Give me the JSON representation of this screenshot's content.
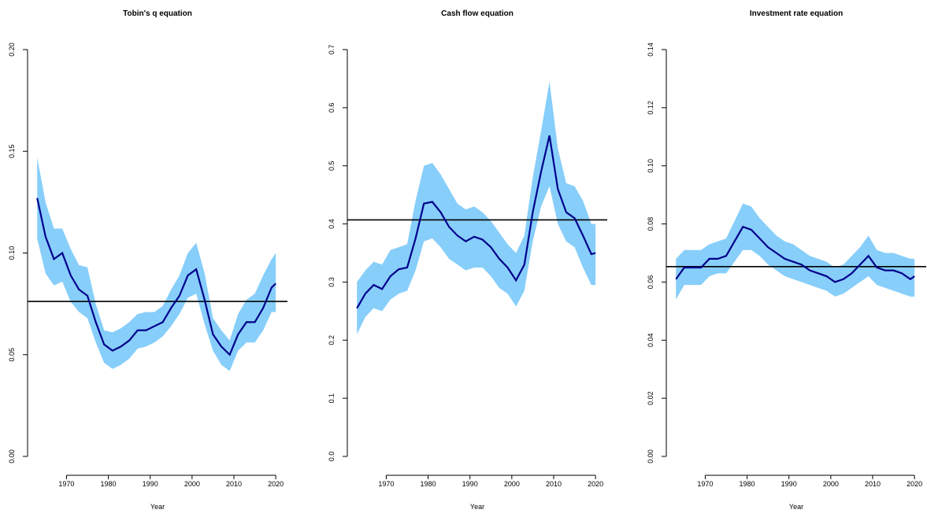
{
  "chart_data": [
    {
      "type": "line",
      "title": "Tobin's q equation",
      "xlabel": "Year",
      "x": [
        1963,
        1965,
        1967,
        1969,
        1971,
        1973,
        1975,
        1977,
        1979,
        1981,
        1983,
        1985,
        1987,
        1989,
        1991,
        1993,
        1995,
        1997,
        1999,
        2001,
        2003,
        2005,
        2007,
        2009,
        2011,
        2013,
        2015,
        2017,
        2019,
        2020
      ],
      "values": [
        0.127,
        0.108,
        0.097,
        0.1,
        0.089,
        0.082,
        0.079,
        0.066,
        0.055,
        0.052,
        0.054,
        0.057,
        0.062,
        0.062,
        0.064,
        0.066,
        0.073,
        0.079,
        0.089,
        0.092,
        0.077,
        0.06,
        0.054,
        0.05,
        0.06,
        0.066,
        0.066,
        0.073,
        0.083,
        0.085
      ],
      "upper": [
        0.147,
        0.125,
        0.112,
        0.112,
        0.102,
        0.094,
        0.093,
        0.075,
        0.062,
        0.061,
        0.063,
        0.066,
        0.07,
        0.071,
        0.071,
        0.074,
        0.082,
        0.089,
        0.1,
        0.105,
        0.09,
        0.068,
        0.062,
        0.057,
        0.07,
        0.077,
        0.08,
        0.089,
        0.097,
        0.1
      ],
      "lower": [
        0.107,
        0.09,
        0.084,
        0.086,
        0.076,
        0.071,
        0.068,
        0.056,
        0.046,
        0.043,
        0.045,
        0.048,
        0.053,
        0.054,
        0.056,
        0.059,
        0.064,
        0.07,
        0.078,
        0.08,
        0.065,
        0.052,
        0.045,
        0.042,
        0.052,
        0.056,
        0.056,
        0.062,
        0.071,
        0.071
      ],
      "color": "#00008b",
      "band_color": "#87cefa",
      "hline": 0.0762,
      "xlim": [
        1960.7,
        2022.8
      ],
      "xticks": [
        1970,
        1980,
        1990,
        2000,
        2010,
        2020
      ],
      "ylim": [
        0,
        0.2
      ],
      "yticks": [
        {
          "value": 0,
          "label": "0.00"
        },
        {
          "value": 0.05,
          "label": "0.05"
        },
        {
          "value": 0.1,
          "label": "0.10"
        },
        {
          "value": 0.15,
          "label": "0.15"
        },
        {
          "value": 0.2,
          "label": "0.20"
        }
      ]
    },
    {
      "type": "line",
      "title": "Cash flow equation",
      "xlabel": "Year",
      "x": [
        1963,
        1965,
        1967,
        1969,
        1971,
        1973,
        1975,
        1977,
        1979,
        1981,
        1983,
        1985,
        1987,
        1989,
        1991,
        1993,
        1995,
        1997,
        1999,
        2001,
        2003,
        2005,
        2007,
        2009,
        2011,
        2013,
        2015,
        2017,
        2019,
        2020
      ],
      "values": [
        0.255,
        0.28,
        0.295,
        0.288,
        0.31,
        0.322,
        0.325,
        0.375,
        0.435,
        0.438,
        0.42,
        0.395,
        0.38,
        0.37,
        0.378,
        0.373,
        0.36,
        0.34,
        0.325,
        0.303,
        0.33,
        0.42,
        0.49,
        0.552,
        0.46,
        0.42,
        0.41,
        0.38,
        0.348,
        0.35
      ],
      "upper": [
        0.3,
        0.32,
        0.335,
        0.33,
        0.355,
        0.36,
        0.365,
        0.44,
        0.5,
        0.505,
        0.485,
        0.46,
        0.435,
        0.425,
        0.43,
        0.42,
        0.405,
        0.385,
        0.365,
        0.35,
        0.38,
        0.48,
        0.56,
        0.645,
        0.53,
        0.47,
        0.465,
        0.44,
        0.4,
        0.4
      ],
      "lower": [
        0.21,
        0.24,
        0.255,
        0.25,
        0.27,
        0.28,
        0.285,
        0.32,
        0.37,
        0.375,
        0.36,
        0.34,
        0.33,
        0.32,
        0.325,
        0.325,
        0.31,
        0.29,
        0.28,
        0.258,
        0.285,
        0.37,
        0.43,
        0.465,
        0.4,
        0.37,
        0.36,
        0.325,
        0.295,
        0.295
      ],
      "color": "#00008b",
      "band_color": "#87cefa",
      "hline": 0.407,
      "xlim": [
        1960.7,
        2022.8
      ],
      "xticks": [
        1970,
        1980,
        1990,
        2000,
        2010,
        2020
      ],
      "ylim": [
        0,
        0.7
      ],
      "yticks": [
        {
          "value": 0,
          "label": "0.0"
        },
        0.1,
        0.2,
        0.3,
        0.4,
        0.5,
        0.6,
        0.7
      ]
    },
    {
      "type": "line",
      "title": "Investment rate equation",
      "xlabel": "Year",
      "x": [
        1963,
        1965,
        1967,
        1969,
        1971,
        1973,
        1975,
        1977,
        1979,
        1981,
        1983,
        1985,
        1987,
        1989,
        1991,
        1993,
        1995,
        1997,
        1999,
        2001,
        2003,
        2005,
        2007,
        2009,
        2011,
        2013,
        2015,
        2017,
        2019,
        2020
      ],
      "values": [
        0.061,
        0.065,
        0.065,
        0.065,
        0.068,
        0.068,
        0.069,
        0.074,
        0.079,
        0.078,
        0.075,
        0.072,
        0.07,
        0.068,
        0.067,
        0.066,
        0.064,
        0.063,
        0.062,
        0.06,
        0.061,
        0.063,
        0.066,
        0.069,
        0.065,
        0.064,
        0.064,
        0.063,
        0.061,
        0.062
      ],
      "upper": [
        0.068,
        0.071,
        0.071,
        0.071,
        0.073,
        0.074,
        0.075,
        0.081,
        0.087,
        0.086,
        0.082,
        0.079,
        0.076,
        0.074,
        0.073,
        0.071,
        0.069,
        0.068,
        0.067,
        0.065,
        0.066,
        0.069,
        0.072,
        0.076,
        0.071,
        0.07,
        0.07,
        0.069,
        0.068,
        0.068
      ],
      "lower": [
        0.054,
        0.059,
        0.059,
        0.059,
        0.062,
        0.063,
        0.063,
        0.067,
        0.071,
        0.071,
        0.069,
        0.066,
        0.064,
        0.062,
        0.061,
        0.06,
        0.059,
        0.058,
        0.057,
        0.055,
        0.056,
        0.058,
        0.06,
        0.062,
        0.059,
        0.058,
        0.057,
        0.056,
        0.055,
        0.055
      ],
      "color": "#00008b",
      "band_color": "#87cefa",
      "hline": 0.0653,
      "xlim": [
        1960.7,
        2022.8
      ],
      "xticks": [
        1970,
        1980,
        1990,
        2000,
        2010,
        2020
      ],
      "ylim": [
        0,
        0.14
      ],
      "yticks": [
        {
          "value": 0,
          "label": "0.00"
        },
        {
          "value": 0.02,
          "label": "0.02"
        },
        {
          "value": 0.04,
          "label": "0.04"
        },
        {
          "value": 0.06,
          "label": "0.06"
        },
        {
          "value": 0.08,
          "label": "0.08"
        },
        {
          "value": 0.1,
          "label": "0.10"
        },
        {
          "value": 0.12,
          "label": "0.12"
        },
        {
          "value": 0.14,
          "label": "0.14"
        }
      ]
    }
  ]
}
